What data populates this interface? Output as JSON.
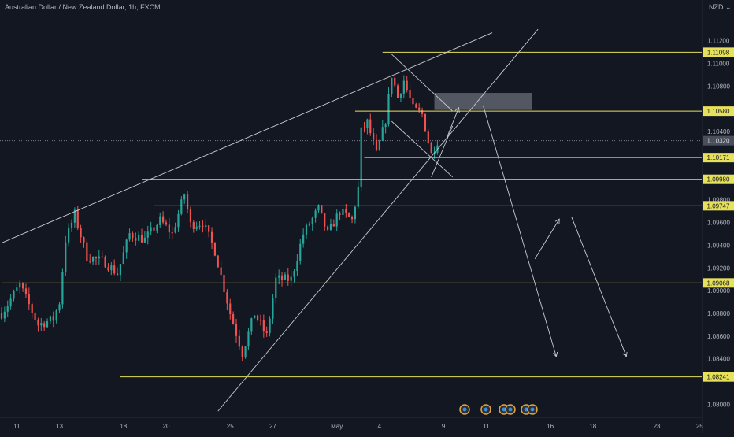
{
  "header": {
    "title": "Australian Dollar / New Zealand Dollar, 1h, FXCM",
    "currency": "NZD"
  },
  "colors": {
    "background": "#131722",
    "bull": "#26a69a",
    "bear": "#ef5350",
    "level": "#e6e05a",
    "trendline": "#c9cbd1",
    "zone": "#6a6d78",
    "axis_text": "#b2b5be",
    "current_tag": "#4a4e5a"
  },
  "chart_data": {
    "type": "candlestick",
    "symbol": "AUDNZD",
    "interval": "1h",
    "y_axis": {
      "ylim": [
        1.0792,
        1.1135
      ],
      "ticks": [
        "1.11200",
        "1.11000",
        "1.10800",
        "1.10400",
        "1.09800",
        "1.09600",
        "1.09400",
        "1.09200",
        "1.09000",
        "1.08800",
        "1.08600",
        "1.08400",
        "1.08000"
      ],
      "tick_values": [
        1.112,
        1.11,
        1.108,
        1.104,
        1.098,
        1.096,
        1.094,
        1.092,
        1.09,
        1.088,
        1.086,
        1.084,
        1.08
      ]
    },
    "x_axis": {
      "ticks": [
        "11",
        "13",
        "18",
        "20",
        "25",
        "27",
        "May",
        "4",
        "9",
        "11",
        "16",
        "18",
        "23",
        "25"
      ],
      "tick_bars": [
        5,
        19,
        40,
        54,
        75,
        89,
        110,
        124,
        145,
        159,
        180,
        194,
        215,
        229
      ]
    },
    "current_price": {
      "value": 1.1032,
      "label": "1.10320"
    },
    "levels": [
      {
        "value": 1.11098,
        "label": "1.11098",
        "from_bar": 125
      },
      {
        "value": 1.1058,
        "label": "1.10580",
        "from_bar": 116
      },
      {
        "value": 1.10171,
        "label": "1.10171",
        "from_bar": 119
      },
      {
        "value": 1.0998,
        "label": "1.09980",
        "from_bar": 46
      },
      {
        "value": 1.09747,
        "label": "1.09747",
        "from_bar": 50
      },
      {
        "value": 1.09068,
        "label": "1.09068",
        "from_bar": 0
      },
      {
        "value": 1.08241,
        "label": "1.08241",
        "from_bar": 39
      }
    ],
    "zone": {
      "from_bar": 142,
      "to_bar": 174,
      "top": 1.1074,
      "bottom": 1.1059
    },
    "trendlines": [
      {
        "x1": 0,
        "y1": 1.0942,
        "x2": 161,
        "y2": 1.1127
      },
      {
        "x1": 71,
        "y1": 1.0794,
        "x2": 176,
        "y2": 1.113
      },
      {
        "x1": 128,
        "y1": 1.1108,
        "x2": 148,
        "y2": 1.1058
      },
      {
        "x1": 128,
        "y1": 1.1049,
        "x2": 148,
        "y2": 1.1
      },
      {
        "x1": 141,
        "y1": 1.1,
        "x2": 148,
        "y2": 1.1045
      }
    ],
    "arrows": [
      {
        "x1": 146,
        "y1": 1.1034,
        "x2": 150,
        "y2": 1.1061
      },
      {
        "x1": 158,
        "y1": 1.1063,
        "x2": 182,
        "y2": 1.0842
      },
      {
        "x1": 175,
        "y1": 1.0928,
        "x2": 183,
        "y2": 1.0963
      },
      {
        "x1": 187,
        "y1": 1.0965,
        "x2": 205,
        "y2": 1.0842
      }
    ],
    "anchors": [
      {
        "bar": 0,
        "price": 1.088
      },
      {
        "bar": 6,
        "price": 1.0905
      },
      {
        "bar": 12,
        "price": 1.087
      },
      {
        "bar": 17,
        "price": 1.0875
      },
      {
        "bar": 19,
        "price": 1.089
      },
      {
        "bar": 21,
        "price": 1.0945
      },
      {
        "bar": 24,
        "price": 1.0967
      },
      {
        "bar": 28,
        "price": 1.093
      },
      {
        "bar": 34,
        "price": 1.0925
      },
      {
        "bar": 38,
        "price": 1.0915
      },
      {
        "bar": 42,
        "price": 1.095
      },
      {
        "bar": 47,
        "price": 1.0945
      },
      {
        "bar": 52,
        "price": 1.0962
      },
      {
        "bar": 56,
        "price": 1.095
      },
      {
        "bar": 60,
        "price": 1.0985
      },
      {
        "bar": 62,
        "price": 1.0958
      },
      {
        "bar": 66,
        "price": 1.096
      },
      {
        "bar": 70,
        "price": 1.0935
      },
      {
        "bar": 75,
        "price": 1.088
      },
      {
        "bar": 79,
        "price": 1.0845
      },
      {
        "bar": 83,
        "price": 1.088
      },
      {
        "bar": 87,
        "price": 1.086
      },
      {
        "bar": 90,
        "price": 1.091
      },
      {
        "bar": 95,
        "price": 1.091
      },
      {
        "bar": 99,
        "price": 1.095
      },
      {
        "bar": 104,
        "price": 1.0972
      },
      {
        "bar": 107,
        "price": 1.095
      },
      {
        "bar": 111,
        "price": 1.097
      },
      {
        "bar": 115,
        "price": 1.0962
      },
      {
        "bar": 117,
        "price": 1.099
      },
      {
        "bar": 118,
        "price": 1.104
      },
      {
        "bar": 120,
        "price": 1.1048
      },
      {
        "bar": 123,
        "price": 1.102
      },
      {
        "bar": 126,
        "price": 1.105
      },
      {
        "bar": 128,
        "price": 1.109
      },
      {
        "bar": 130,
        "price": 1.107
      },
      {
        "bar": 132,
        "price": 1.1085
      },
      {
        "bar": 135,
        "price": 1.106
      },
      {
        "bar": 138,
        "price": 1.1055
      },
      {
        "bar": 141,
        "price": 1.102
      },
      {
        "bar": 143,
        "price": 1.1032
      }
    ],
    "bars_total": 238
  },
  "event_icons": [
    "economic-event-icon",
    "economic-event-icon",
    "economic-event-icon",
    "economic-event-icon",
    "economic-event-icon",
    "economic-event-icon"
  ]
}
